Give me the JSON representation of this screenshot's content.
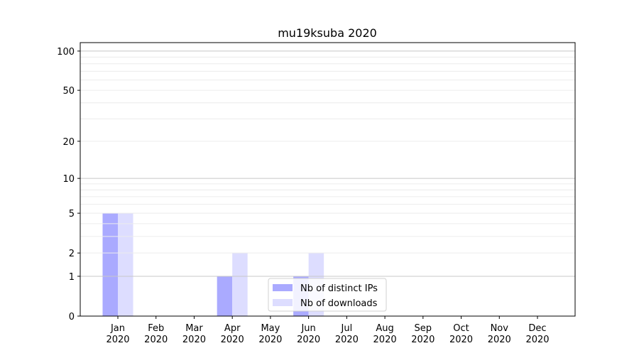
{
  "chart_data": {
    "type": "bar",
    "title": "mu19ksuba 2020",
    "xlabel": "",
    "ylabel": "",
    "yscale": "log(1+y)",
    "ylim": [
      0,
      116
    ],
    "yticks": [
      0,
      1,
      2,
      5,
      10,
      20,
      50,
      100
    ],
    "grid": true,
    "legend_position": "lower-center",
    "categories": [
      "Jan\n2020",
      "Feb\n2020",
      "Mar\n2020",
      "Apr\n2020",
      "May\n2020",
      "Jun\n2020",
      "Jul\n2020",
      "Aug\n2020",
      "Sep\n2020",
      "Oct\n2020",
      "Nov\n2020",
      "Dec\n2020"
    ],
    "series": [
      {
        "name": "Nb of distinct IPs",
        "color": "#aaaaff",
        "values": [
          5,
          0,
          0,
          1,
          0,
          1,
          0,
          0,
          0,
          0,
          0,
          0
        ]
      },
      {
        "name": "Nb of downloads",
        "color": "#ddddff",
        "values": [
          5,
          0,
          0,
          2,
          0,
          2,
          0,
          0,
          0,
          0,
          0,
          0
        ]
      }
    ]
  }
}
